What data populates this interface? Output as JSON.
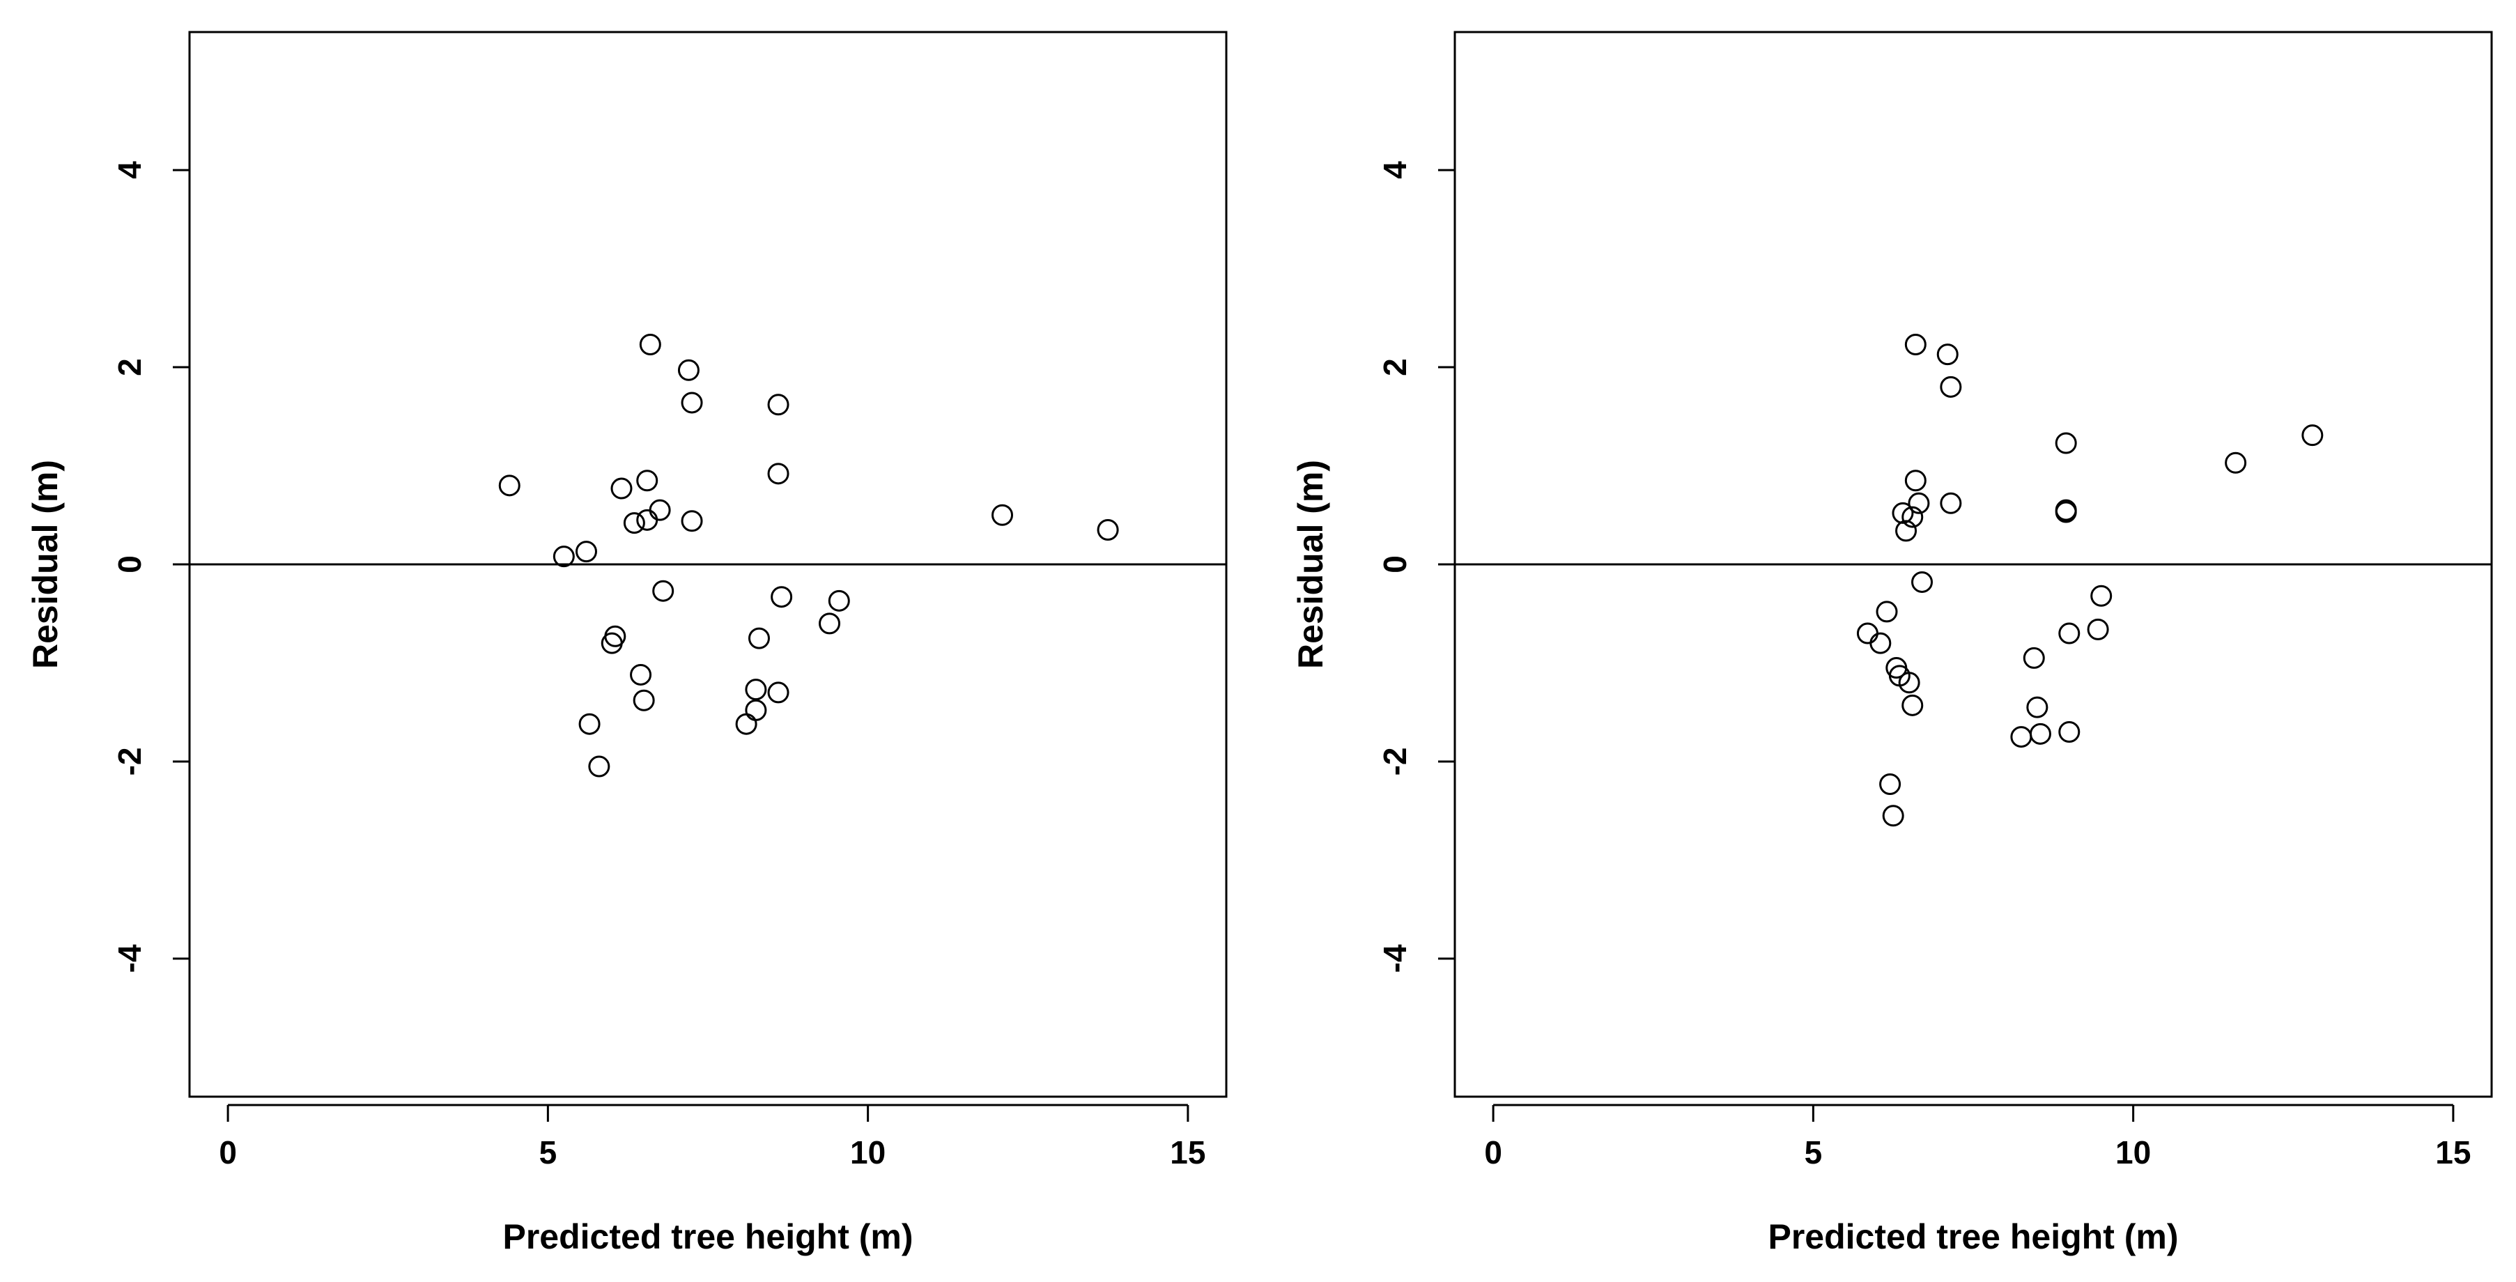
{
  "colors": {
    "background": "#ffffff",
    "ink": "#000000"
  },
  "chart_data": [
    {
      "type": "scatter",
      "panel": "left",
      "title": "",
      "xlabel": "Predicted tree height (m)",
      "ylabel": "Residual (m)",
      "xlim": [
        -0.6,
        15.6
      ],
      "ylim": [
        -5.4,
        5.4
      ],
      "xticks": [
        0,
        5,
        10,
        15
      ],
      "yticks": [
        -4,
        -2,
        0,
        2,
        4
      ],
      "reference_line_y": 0,
      "points": [
        {
          "x": 4.4,
          "y": 0.8
        },
        {
          "x": 5.25,
          "y": 0.08
        },
        {
          "x": 5.6,
          "y": 0.13
        },
        {
          "x": 5.65,
          "y": -1.62
        },
        {
          "x": 5.8,
          "y": -2.05
        },
        {
          "x": 6.0,
          "y": -0.8
        },
        {
          "x": 6.05,
          "y": -0.73
        },
        {
          "x": 6.15,
          "y": 0.77
        },
        {
          "x": 6.35,
          "y": 0.42
        },
        {
          "x": 6.45,
          "y": -1.12
        },
        {
          "x": 6.5,
          "y": -1.38
        },
        {
          "x": 6.55,
          "y": 0.45
        },
        {
          "x": 6.55,
          "y": 0.85
        },
        {
          "x": 6.6,
          "y": 2.23
        },
        {
          "x": 6.75,
          "y": 0.55
        },
        {
          "x": 6.8,
          "y": -0.27
        },
        {
          "x": 7.2,
          "y": 1.97
        },
        {
          "x": 7.25,
          "y": 1.64
        },
        {
          "x": 7.25,
          "y": 0.44
        },
        {
          "x": 8.1,
          "y": -1.62
        },
        {
          "x": 8.25,
          "y": -1.27
        },
        {
          "x": 8.25,
          "y": -1.48
        },
        {
          "x": 8.3,
          "y": -0.75
        },
        {
          "x": 8.6,
          "y": -1.3
        },
        {
          "x": 8.6,
          "y": 1.62
        },
        {
          "x": 8.6,
          "y": 0.92
        },
        {
          "x": 8.65,
          "y": -0.33
        },
        {
          "x": 9.4,
          "y": -0.6
        },
        {
          "x": 9.55,
          "y": -0.37
        },
        {
          "x": 12.1,
          "y": 0.5
        },
        {
          "x": 13.75,
          "y": 0.35
        }
      ]
    },
    {
      "type": "scatter",
      "panel": "right",
      "title": "",
      "xlabel": "Predicted tree height (m)",
      "ylabel": "Residual (m)",
      "xlim": [
        -0.6,
        15.6
      ],
      "ylim": [
        -5.4,
        5.4
      ],
      "xticks": [
        0,
        5,
        10,
        15
      ],
      "yticks": [
        -4,
        -2,
        0,
        2,
        4
      ],
      "reference_line_y": 0,
      "points": [
        {
          "x": 5.85,
          "y": -0.7
        },
        {
          "x": 6.05,
          "y": -0.8
        },
        {
          "x": 6.15,
          "y": -0.48
        },
        {
          "x": 6.2,
          "y": -2.23
        },
        {
          "x": 6.25,
          "y": -2.55
        },
        {
          "x": 6.3,
          "y": -1.05
        },
        {
          "x": 6.35,
          "y": -1.13
        },
        {
          "x": 6.4,
          "y": 0.52
        },
        {
          "x": 6.45,
          "y": 0.34
        },
        {
          "x": 6.5,
          "y": -1.2
        },
        {
          "x": 6.55,
          "y": -1.43
        },
        {
          "x": 6.55,
          "y": 0.48
        },
        {
          "x": 6.6,
          "y": 2.23
        },
        {
          "x": 6.6,
          "y": 0.85
        },
        {
          "x": 6.65,
          "y": 0.62
        },
        {
          "x": 6.7,
          "y": -0.18
        },
        {
          "x": 7.1,
          "y": 2.13
        },
        {
          "x": 7.15,
          "y": 1.8
        },
        {
          "x": 7.15,
          "y": 0.62
        },
        {
          "x": 8.25,
          "y": -1.75
        },
        {
          "x": 8.45,
          "y": -0.95
        },
        {
          "x": 8.5,
          "y": -1.45
        },
        {
          "x": 8.55,
          "y": -1.72
        },
        {
          "x": 8.95,
          "y": 1.23
        },
        {
          "x": 8.95,
          "y": 0.55
        },
        {
          "x": 8.95,
          "y": 0.53
        },
        {
          "x": 9.0,
          "y": -0.7
        },
        {
          "x": 9.0,
          "y": -1.7
        },
        {
          "x": 9.45,
          "y": -0.66
        },
        {
          "x": 9.5,
          "y": -0.32
        },
        {
          "x": 11.6,
          "y": 1.03
        },
        {
          "x": 12.8,
          "y": 1.31
        }
      ]
    }
  ]
}
